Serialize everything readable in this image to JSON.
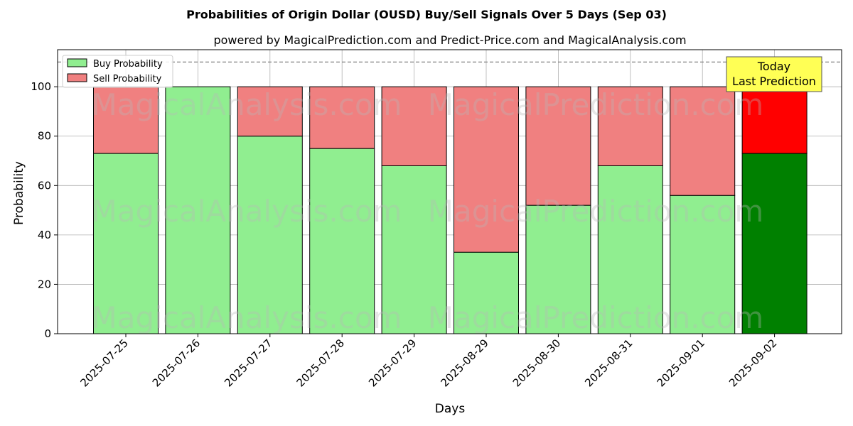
{
  "chart_data": {
    "type": "bar",
    "stacked": true,
    "title": "Probabilities of Origin Dollar (OUSD) Buy/Sell Signals Over 5 Days (Sep 03)",
    "subtitle": "powered by MagicalPrediction.com and Predict-Price.com and MagicalAnalysis.com",
    "xlabel": "Days",
    "ylabel": "Probability",
    "ylim": [
      0,
      115
    ],
    "yticks": [
      0,
      20,
      40,
      60,
      80,
      100
    ],
    "reference_line": 110,
    "grid": true,
    "legend_position": "top-left",
    "categories": [
      "2025-07-25",
      "2025-07-26",
      "2025-07-27",
      "2025-07-28",
      "2025-07-29",
      "2025-08-29",
      "2025-08-30",
      "2025-08-31",
      "2025-09-01",
      "2025-09-02"
    ],
    "series": [
      {
        "name": "Buy Probability",
        "color": "#90ee90",
        "highlight_color": "#008000",
        "values": [
          73,
          100,
          80,
          75,
          68,
          33,
          52,
          68,
          56,
          73
        ]
      },
      {
        "name": "Sell Probability",
        "color": "#f08080",
        "highlight_color": "#ff0000",
        "values": [
          27,
          0,
          20,
          25,
          32,
          67,
          48,
          32,
          44,
          27
        ]
      }
    ],
    "highlight_index": 9,
    "annotation": {
      "lines": [
        "Today",
        "Last Prediction"
      ],
      "background": "#ffff55"
    }
  },
  "watermarks": [
    "MagicalAnalysis.com",
    "MagicalPrediction.com"
  ]
}
